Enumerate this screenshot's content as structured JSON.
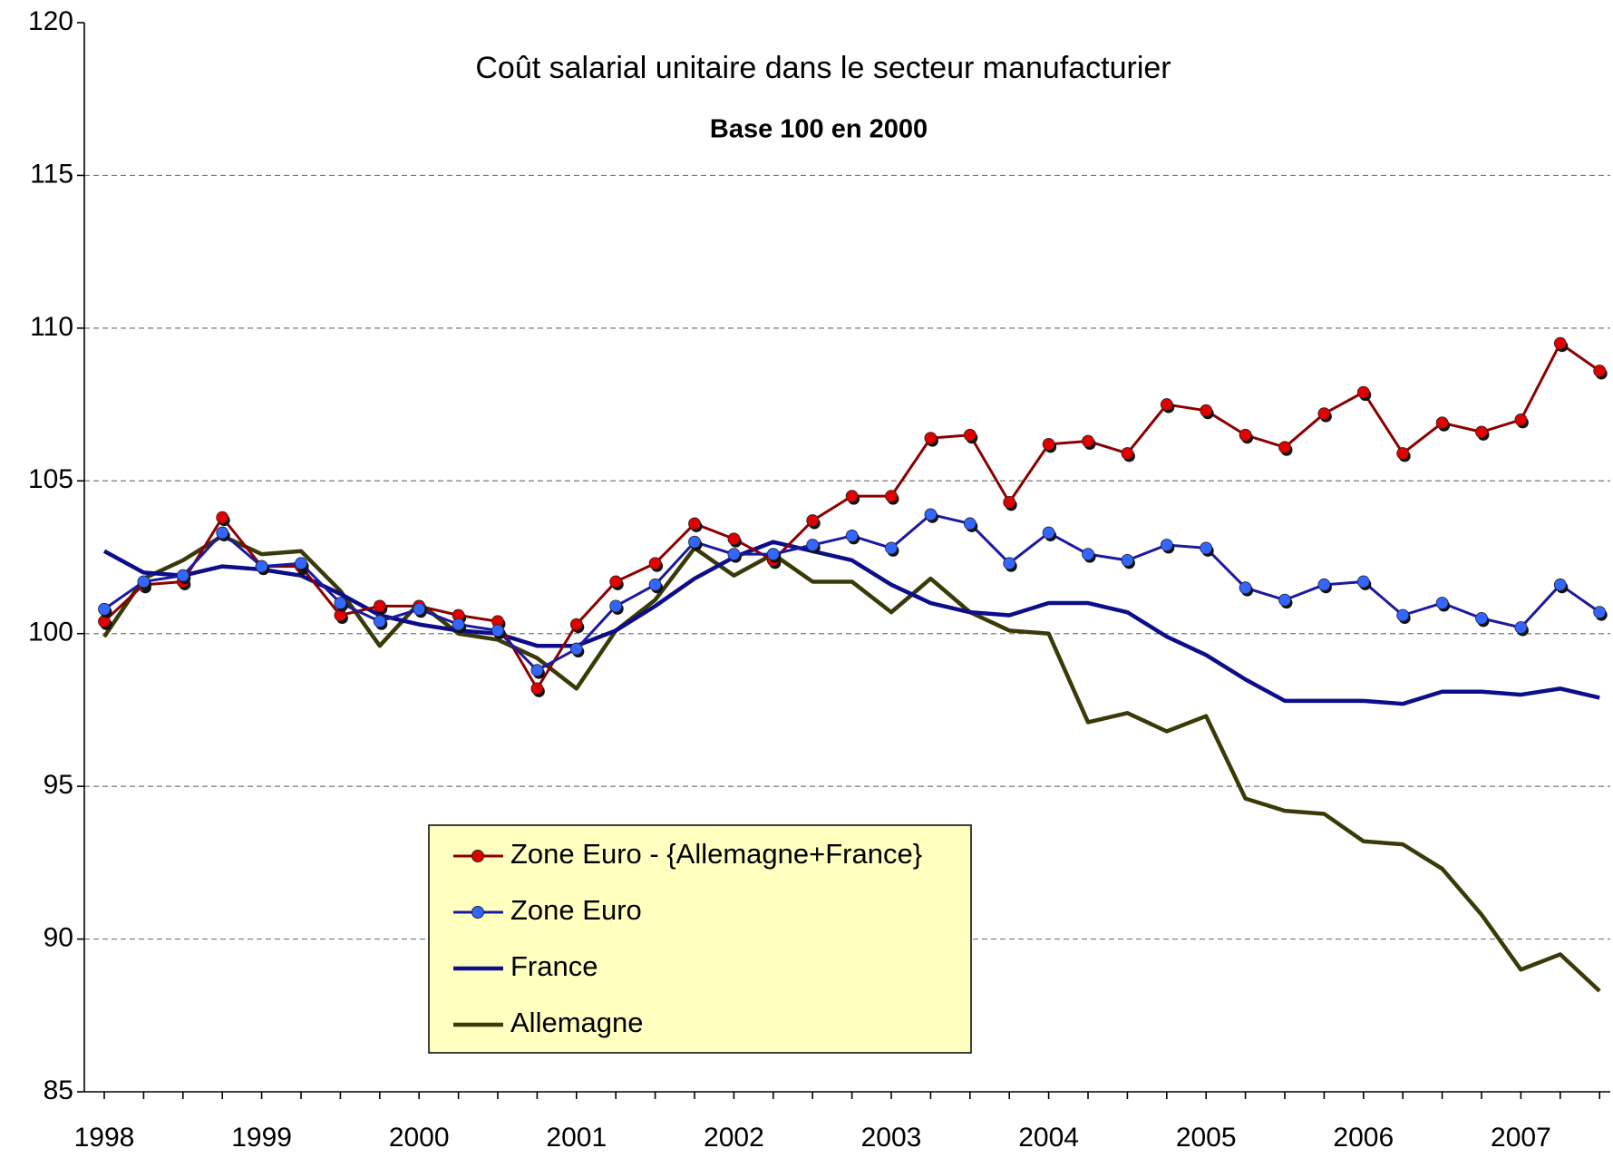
{
  "chart_data": {
    "type": "line",
    "title": "Coût salarial unitaire dans le secteur manufacturier",
    "subtitle": "Base 100 en 2000",
    "categories": [
      "1998",
      null,
      null,
      null,
      "1999",
      null,
      null,
      null,
      "2000",
      null,
      null,
      null,
      "2001",
      null,
      null,
      null,
      "2002",
      null,
      null,
      null,
      "2003",
      null,
      null,
      null,
      "2004",
      null,
      null,
      null,
      "2005",
      null,
      null,
      null,
      "2006",
      null,
      null,
      null,
      "2007",
      null,
      null
    ],
    "series": [
      {
        "name": "Zone Euro - {Allemagne+France}",
        "color": "#8b0000",
        "marker": "#e00000",
        "values": [
          100.4,
          101.6,
          101.7,
          103.8,
          102.2,
          102.2,
          100.6,
          100.9,
          100.9,
          100.6,
          100.4,
          98.2,
          100.3,
          101.7,
          102.3,
          103.6,
          103.1,
          102.4,
          103.7,
          104.5,
          104.5,
          106.4,
          106.5,
          104.3,
          106.2,
          106.3,
          105.9,
          107.5,
          107.3,
          106.5,
          106.1,
          107.2,
          107.9,
          105.9,
          106.9,
          106.6,
          107.0,
          109.5,
          108.6
        ]
      },
      {
        "name": "Zone Euro",
        "color": "#1a1aa0",
        "marker": "#3366ff",
        "values": [
          100.8,
          101.7,
          101.9,
          103.3,
          102.2,
          102.3,
          101.0,
          100.4,
          100.8,
          100.3,
          100.1,
          98.8,
          99.5,
          100.9,
          101.6,
          103.0,
          102.6,
          102.6,
          102.9,
          103.2,
          102.8,
          103.9,
          103.6,
          102.3,
          103.3,
          102.6,
          102.4,
          102.9,
          102.8,
          101.5,
          101.1,
          101.6,
          101.7,
          100.6,
          101.0,
          100.5,
          100.2,
          101.6,
          100.7
        ]
      },
      {
        "name": "France",
        "color": "#0d0d8c",
        "values": [
          102.7,
          102.0,
          101.9,
          102.2,
          102.1,
          101.9,
          101.3,
          100.6,
          100.3,
          100.1,
          100.0,
          99.6,
          99.6,
          100.1,
          100.9,
          101.8,
          102.5,
          103.0,
          102.7,
          102.4,
          101.6,
          101.0,
          100.7,
          100.6,
          101.0,
          101.0,
          100.7,
          99.9,
          99.3,
          98.5,
          97.8,
          97.8,
          97.8,
          97.7,
          98.1,
          98.1,
          98.0,
          98.2,
          97.9
        ]
      },
      {
        "name": "Allemagne",
        "color": "#3a3a08",
        "values": [
          99.9,
          101.8,
          102.4,
          103.2,
          102.6,
          102.7,
          101.4,
          99.6,
          101.0,
          100.0,
          99.8,
          99.2,
          98.2,
          100.1,
          101.1,
          102.8,
          101.9,
          102.6,
          101.7,
          101.7,
          100.7,
          101.8,
          100.7,
          100.1,
          100.0,
          97.1,
          97.4,
          96.8,
          97.3,
          94.6,
          94.2,
          94.1,
          93.2,
          93.1,
          92.3,
          90.8,
          89.0,
          89.5,
          88.3
        ]
      }
    ],
    "ylim": [
      85,
      120
    ],
    "yticks": [
      85,
      90,
      95,
      100,
      105,
      110,
      115,
      120
    ],
    "grid": true
  }
}
